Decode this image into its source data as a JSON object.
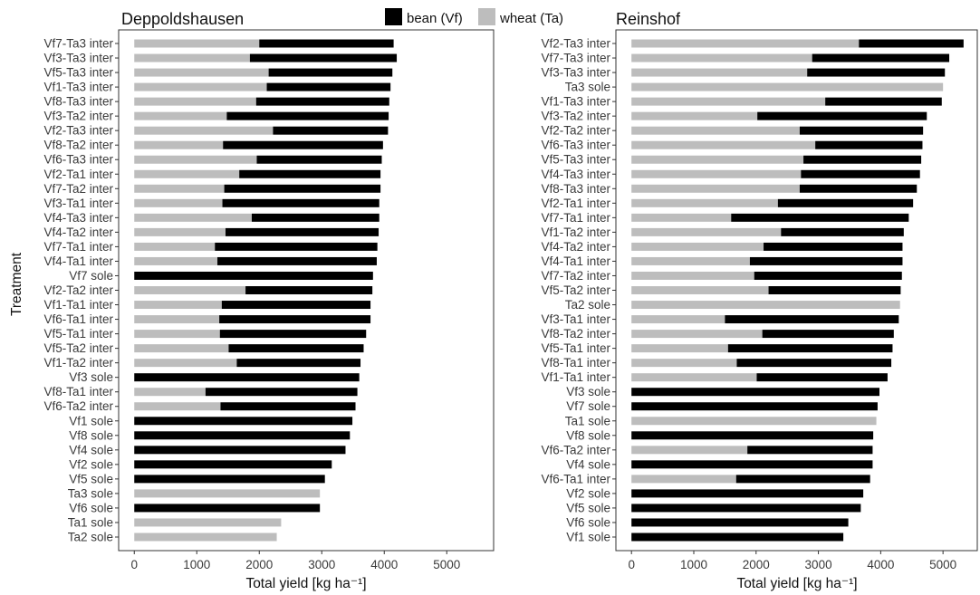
{
  "legend": {
    "items": [
      {
        "label": "bean (Vf)",
        "color": "#000000"
      },
      {
        "label": "wheat (Ta)",
        "color": "#bdbdbd"
      }
    ]
  },
  "y_axis_title": "Treatment",
  "chart_data": [
    {
      "type": "bar",
      "orientation": "horizontal",
      "stacked": true,
      "title": "Deppoldshausen",
      "xlabel": "Total yield [kg ha⁻¹]",
      "ylabel": "Treatment",
      "xlim": [
        -250,
        5750
      ],
      "xticks": [
        0,
        1000,
        2000,
        3000,
        4000,
        5000
      ],
      "colors": {
        "wheat": "#bdbdbd",
        "bean": "#000000"
      },
      "categories": [
        "Vf7-Ta3 inter",
        "Vf3-Ta3 inter",
        "Vf5-Ta3 inter",
        "Vf1-Ta3 inter",
        "Vf8-Ta3 inter",
        "Vf3-Ta2 inter",
        "Vf2-Ta3 inter",
        "Vf8-Ta2 inter",
        "Vf6-Ta3 inter",
        "Vf2-Ta1 inter",
        "Vf7-Ta2 inter",
        "Vf3-Ta1 inter",
        "Vf4-Ta3 inter",
        "Vf4-Ta2 inter",
        "Vf7-Ta1 inter",
        "Vf4-Ta1 inter",
        "Vf7 sole",
        "Vf2-Ta2 inter",
        "Vf1-Ta1 inter",
        "Vf6-Ta1 inter",
        "Vf5-Ta1 inter",
        "Vf5-Ta2 inter",
        "Vf1-Ta2 inter",
        "Vf3 sole",
        "Vf8-Ta1 inter",
        "Vf6-Ta2 inter",
        "Vf1 sole",
        "Vf8 sole",
        "Vf4 sole",
        "Vf2 sole",
        "Vf5 sole",
        "Ta3 sole",
        "Vf6 sole",
        "Ta1 sole",
        "Ta2 sole"
      ],
      "series": [
        {
          "name": "wheat (Ta)",
          "values": [
            2000,
            1850,
            2150,
            2120,
            1950,
            1480,
            2220,
            1420,
            1960,
            1680,
            1440,
            1410,
            1880,
            1460,
            1290,
            1330,
            0,
            1780,
            1400,
            1360,
            1370,
            1510,
            1640,
            0,
            1140,
            1380,
            0,
            0,
            0,
            0,
            0,
            2970,
            0,
            2350,
            2280
          ]
        },
        {
          "name": "bean (Vf)",
          "values": [
            2150,
            2350,
            1980,
            1980,
            2130,
            2590,
            1840,
            2560,
            2000,
            2260,
            2500,
            2510,
            2040,
            2450,
            2600,
            2550,
            3820,
            2030,
            2380,
            2420,
            2340,
            2160,
            1980,
            3600,
            2430,
            2160,
            3490,
            3450,
            3380,
            3160,
            3050,
            0,
            2970,
            0,
            0
          ]
        }
      ],
      "totals": [
        4150,
        4200,
        4130,
        4100,
        4080,
        4070,
        4060,
        3980,
        3960,
        3940,
        3940,
        3920,
        3920,
        3910,
        3890,
        3880,
        3820,
        3810,
        3780,
        3780,
        3710,
        3670,
        3620,
        3600,
        3570,
        3540,
        3490,
        3450,
        3380,
        3160,
        3050,
        2970,
        2970,
        2350,
        2280
      ]
    },
    {
      "type": "bar",
      "orientation": "horizontal",
      "stacked": true,
      "title": "Reinshof",
      "xlabel": "Total yield [kg ha⁻¹]",
      "ylabel": "",
      "xlim": [
        -250,
        5550
      ],
      "xticks": [
        0,
        1000,
        2000,
        3000,
        4000,
        5000
      ],
      "colors": {
        "wheat": "#bdbdbd",
        "bean": "#000000"
      },
      "categories": [
        "Vf2-Ta3 inter",
        "Vf7-Ta3 inter",
        "Vf3-Ta3 inter",
        "Ta3 sole",
        "Vf1-Ta3 inter",
        "Vf3-Ta2 inter",
        "Vf2-Ta2 inter",
        "Vf6-Ta3 inter",
        "Vf5-Ta3 inter",
        "Vf4-Ta3 inter",
        "Vf8-Ta3 inter",
        "Vf2-Ta1 inter",
        "Vf7-Ta1 inter",
        "Vf1-Ta2 inter",
        "Vf4-Ta2 inter",
        "Vf4-Ta1 inter",
        "Vf7-Ta2 inter",
        "Vf5-Ta2 inter",
        "Ta2 sole",
        "Vf3-Ta1 inter",
        "Vf8-Ta2 inter",
        "Vf5-Ta1 inter",
        "Vf8-Ta1 inter",
        "Vf1-Ta1 inter",
        "Vf3 sole",
        "Vf7 sole",
        "Ta1 sole",
        "Vf8 sole",
        "Vf6-Ta2 inter",
        "Vf4 sole",
        "Vf6-Ta1 inter",
        "Vf2 sole",
        "Vf5 sole",
        "Vf6 sole",
        "Vf1 sole"
      ],
      "series": [
        {
          "name": "wheat (Ta)",
          "values": [
            3650,
            2900,
            2820,
            5000,
            3110,
            2020,
            2700,
            2950,
            2760,
            2720,
            2700,
            2350,
            1600,
            2400,
            2120,
            1900,
            1970,
            2200,
            4310,
            1500,
            2100,
            1550,
            1690,
            2010,
            0,
            0,
            3930,
            0,
            1860,
            0,
            1680,
            0,
            0,
            0,
            0
          ]
        },
        {
          "name": "bean (Vf)",
          "values": [
            1680,
            2200,
            2210,
            0,
            1870,
            2720,
            1980,
            1720,
            1890,
            1910,
            1880,
            2170,
            2850,
            1970,
            2230,
            2450,
            2370,
            2120,
            0,
            2790,
            2110,
            2640,
            2480,
            2100,
            3980,
            3950,
            0,
            3880,
            2010,
            3870,
            2150,
            3720,
            3680,
            3480,
            3400
          ]
        }
      ],
      "totals": [
        5330,
        5100,
        5030,
        5000,
        4980,
        4740,
        4680,
        4670,
        4650,
        4630,
        4580,
        4520,
        4450,
        4370,
        4350,
        4350,
        4340,
        4320,
        4310,
        4290,
        4210,
        4190,
        4170,
        4110,
        3980,
        3950,
        3930,
        3880,
        3870,
        3870,
        3830,
        3720,
        3680,
        3480,
        3400
      ]
    }
  ]
}
